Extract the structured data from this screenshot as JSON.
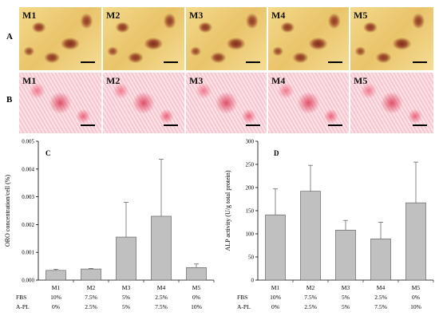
{
  "row_labels": [
    "A",
    "B"
  ],
  "micrographs": {
    "row_a": [
      "M1",
      "M2",
      "M3",
      "M4",
      "M5"
    ],
    "row_b": [
      "M1",
      "M2",
      "M3",
      "M4",
      "M5"
    ]
  },
  "chart_data": [
    {
      "type": "bar",
      "panel_label": "C",
      "ylabel": "ORO concentration/cell (%)",
      "categories": [
        "M1",
        "M2",
        "M3",
        "M4",
        "M5"
      ],
      "values": [
        0.00035,
        0.0004,
        0.00155,
        0.0023,
        0.00045
      ],
      "error": [
        4e-05,
        2e-05,
        0.00125,
        0.00205,
        0.00013
      ],
      "ylim": [
        0,
        0.005
      ],
      "yticks": [
        "0.000",
        "0.001",
        "0.002",
        "0.003",
        "0.004",
        "0.005"
      ],
      "bar_color": "#c0c0c0"
    },
    {
      "type": "bar",
      "panel_label": "D",
      "ylabel": "ALP activity (U/g total protein)",
      "categories": [
        "M1",
        "M2",
        "M3",
        "M4",
        "M5"
      ],
      "values": [
        141,
        192,
        108,
        89,
        167
      ],
      "error": [
        56,
        56,
        21,
        36,
        88
      ],
      "ylim": [
        0,
        300
      ],
      "yticks": [
        "0",
        "50",
        "100",
        "150",
        "200",
        "250",
        "300"
      ],
      "bar_color": "#c0c0c0"
    }
  ],
  "conditions": {
    "rows": [
      {
        "label": "FBS",
        "values": [
          "10%",
          "7.5%",
          "5%",
          "2.5%",
          "0%"
        ]
      },
      {
        "label": "A-PL",
        "values": [
          "0%",
          "2.5%",
          "5%",
          "7.5%",
          "10%"
        ]
      }
    ]
  }
}
